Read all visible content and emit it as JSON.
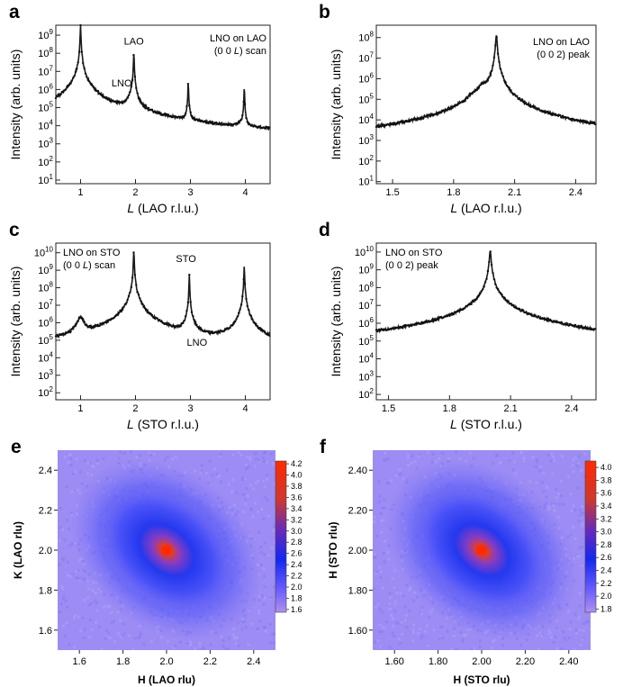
{
  "figure": {
    "panel_labels": [
      "a",
      "b",
      "c",
      "d",
      "e",
      "f"
    ]
  },
  "chart_data": [
    {
      "id": "a",
      "type": "line",
      "panel_label": "a",
      "annotation": [
        "LNO on LAO",
        "(0 0 ",
        "L",
        ") scan"
      ],
      "peak_labels": [
        {
          "text": "LAO",
          "x": 1.97,
          "y": 300000000
        },
        {
          "text": "LNO",
          "x": 1.75,
          "y": 1500000
        }
      ],
      "xlabel": [
        "L",
        " (LAO r.l.u.)"
      ],
      "ylabel": "Intensity (arb. units)",
      "xlim": [
        0.55,
        4.45
      ],
      "ylim_log10": [
        0.8,
        9.55
      ],
      "xticks": [
        1,
        2,
        3,
        4
      ],
      "ytick_exps": [
        1,
        2,
        3,
        4,
        5,
        6,
        7,
        8,
        9
      ],
      "background": {
        "center": 2.5,
        "level_log10": 1.5,
        "curvature": 0.35
      },
      "peaks": [
        {
          "x": 1.0,
          "log_height": 9.6,
          "width": 0.004
        },
        {
          "x": 0.98,
          "log_height": 6.6,
          "width": 0.05
        },
        {
          "x": 1.97,
          "log_height": 8.1,
          "width": 0.004
        },
        {
          "x": 1.93,
          "log_height": 5.5,
          "width": 0.05
        },
        {
          "x": 2.96,
          "log_height": 6.5,
          "width": 0.004
        },
        {
          "x": 2.9,
          "log_height": 3.1,
          "width": 0.04
        },
        {
          "x": 3.98,
          "log_height": 6.2,
          "width": 0.004
        },
        {
          "x": 3.9,
          "log_height": 3.6,
          "width": 0.05
        }
      ]
    },
    {
      "id": "b",
      "type": "line",
      "panel_label": "b",
      "annotation": [
        "LNO on LAO",
        "(0 0 2) peak"
      ],
      "xlabel": [
        "L",
        " (LAO r.l.u.)"
      ],
      "ylabel": "Intensity (arb. units)",
      "xlim": [
        1.42,
        2.5
      ],
      "ylim_log10": [
        0.9,
        8.6
      ],
      "xticks": [
        1.5,
        1.8,
        2.1,
        2.4
      ],
      "ytick_exps": [
        1,
        2,
        3,
        4,
        5,
        6,
        7,
        8
      ],
      "background": {
        "center": 1.95,
        "level_log10": 1.35,
        "curvature": 0.3
      },
      "peaks": [
        {
          "x": 2.01,
          "log_height": 8.15,
          "width": 0.003
        },
        {
          "x": 1.94,
          "log_height": 5.5,
          "width": 0.03
        },
        {
          "x": 1.73,
          "log_height": 2.7,
          "width": 0.008
        },
        {
          "x": 1.78,
          "log_height": 3.2,
          "width": 0.008
        },
        {
          "x": 1.83,
          "log_height": 3.8,
          "width": 0.008
        },
        {
          "x": 1.88,
          "log_height": 4.6,
          "width": 0.009
        },
        {
          "x": 2.06,
          "log_height": 2.0,
          "width": 0.01
        }
      ]
    },
    {
      "id": "c",
      "type": "line",
      "panel_label": "c",
      "annotation": [
        "LNO on STO",
        "(0 0 ",
        "L",
        ") scan"
      ],
      "peak_labels": [
        {
          "text": "STO",
          "x": 2.92,
          "y": 3000000000
        },
        {
          "text": "LNO",
          "x": 3.12,
          "y": 50000
        }
      ],
      "xlabel": [
        "L",
        " (STO r.l.u.)"
      ],
      "ylabel": "Intensity (arb. units)",
      "xlim": [
        0.55,
        4.45
      ],
      "ylim_log10": [
        1.6,
        10.55
      ],
      "xticks": [
        1,
        2,
        3,
        4
      ],
      "ytick_exps": [
        2,
        3,
        4,
        5,
        6,
        7,
        8,
        9,
        10
      ],
      "background": {
        "center": 2.5,
        "level_log10": 1.7,
        "curvature": 0.5
      },
      "peaks": [
        {
          "x": 1.0,
          "log_height": 6.3,
          "width": 0.05
        },
        {
          "x": 1.97,
          "log_height": 10.2,
          "width": 0.004
        },
        {
          "x": 2.02,
          "log_height": 6.5,
          "width": 0.08
        },
        {
          "x": 2.98,
          "log_height": 8.7,
          "width": 0.004
        },
        {
          "x": 3.06,
          "log_height": 4.6,
          "width": 0.05
        },
        {
          "x": 3.98,
          "log_height": 9.3,
          "width": 0.004
        },
        {
          "x": 4.1,
          "log_height": 4.6,
          "width": 0.05
        }
      ]
    },
    {
      "id": "d",
      "type": "line",
      "panel_label": "d",
      "annotation": [
        "LNO on STO",
        "(0 0 2) peak"
      ],
      "xlabel": [
        "L",
        " (STO r.l.u.)"
      ],
      "ylabel": "Intensity (arb. units)",
      "xlim": [
        1.44,
        2.52
      ],
      "ylim_log10": [
        1.7,
        10.5
      ],
      "xticks": [
        1.5,
        1.8,
        2.1,
        2.4
      ],
      "ytick_exps": [
        2,
        3,
        4,
        5,
        6,
        7,
        8,
        9,
        10
      ],
      "background": {
        "center": 2.0,
        "level_log10": 1.8,
        "curvature": 0.8
      },
      "peaks": [
        {
          "x": 2.0,
          "log_height": 10.1,
          "width": 0.003
        },
        {
          "x": 2.05,
          "log_height": 6.4,
          "width": 0.05
        },
        {
          "x": 1.98,
          "log_height": 4.2,
          "width": 0.08
        }
      ]
    },
    {
      "id": "e",
      "type": "heatmap",
      "panel_label": "e",
      "xlabel": "H (LAO rlu)",
      "ylabel": "K (LAO rlu)",
      "xlim": [
        1.5,
        2.5
      ],
      "ylim": [
        1.5,
        2.5
      ],
      "xticks": [
        "1.6",
        "1.8",
        "2.0",
        "2.2",
        "2.4"
      ],
      "yticks": [
        "1.6",
        "1.8",
        "2.0",
        "2.2",
        "2.4"
      ],
      "peak_center": [
        2.0,
        2.0
      ],
      "colorbar": {
        "min": 1.55,
        "max": 4.25,
        "ticks": [
          "1.6",
          "1.8",
          "2.0",
          "2.2",
          "2.4",
          "2.6",
          "2.8",
          "3.0",
          "3.2",
          "3.4",
          "3.6",
          "3.8",
          "4.0",
          "4.2"
        ]
      }
    },
    {
      "id": "f",
      "type": "heatmap",
      "panel_label": "f",
      "xlabel": "H (STO rlu)",
      "ylabel": "H (STO rlu)",
      "xlim": [
        1.5,
        2.5
      ],
      "ylim": [
        1.5,
        2.5
      ],
      "xticks": [
        "1.60",
        "1.80",
        "2.00",
        "2.20",
        "2.40"
      ],
      "yticks": [
        "1.60",
        "1.80",
        "2.00",
        "2.20",
        "2.40"
      ],
      "peak_center": [
        2.0,
        2.0
      ],
      "colorbar": {
        "min": 1.75,
        "max": 4.1,
        "ticks": [
          "1.8",
          "2.0",
          "2.2",
          "2.4",
          "2.6",
          "2.8",
          "3.0",
          "3.2",
          "3.4",
          "3.6",
          "3.8",
          "4.0"
        ]
      }
    }
  ]
}
